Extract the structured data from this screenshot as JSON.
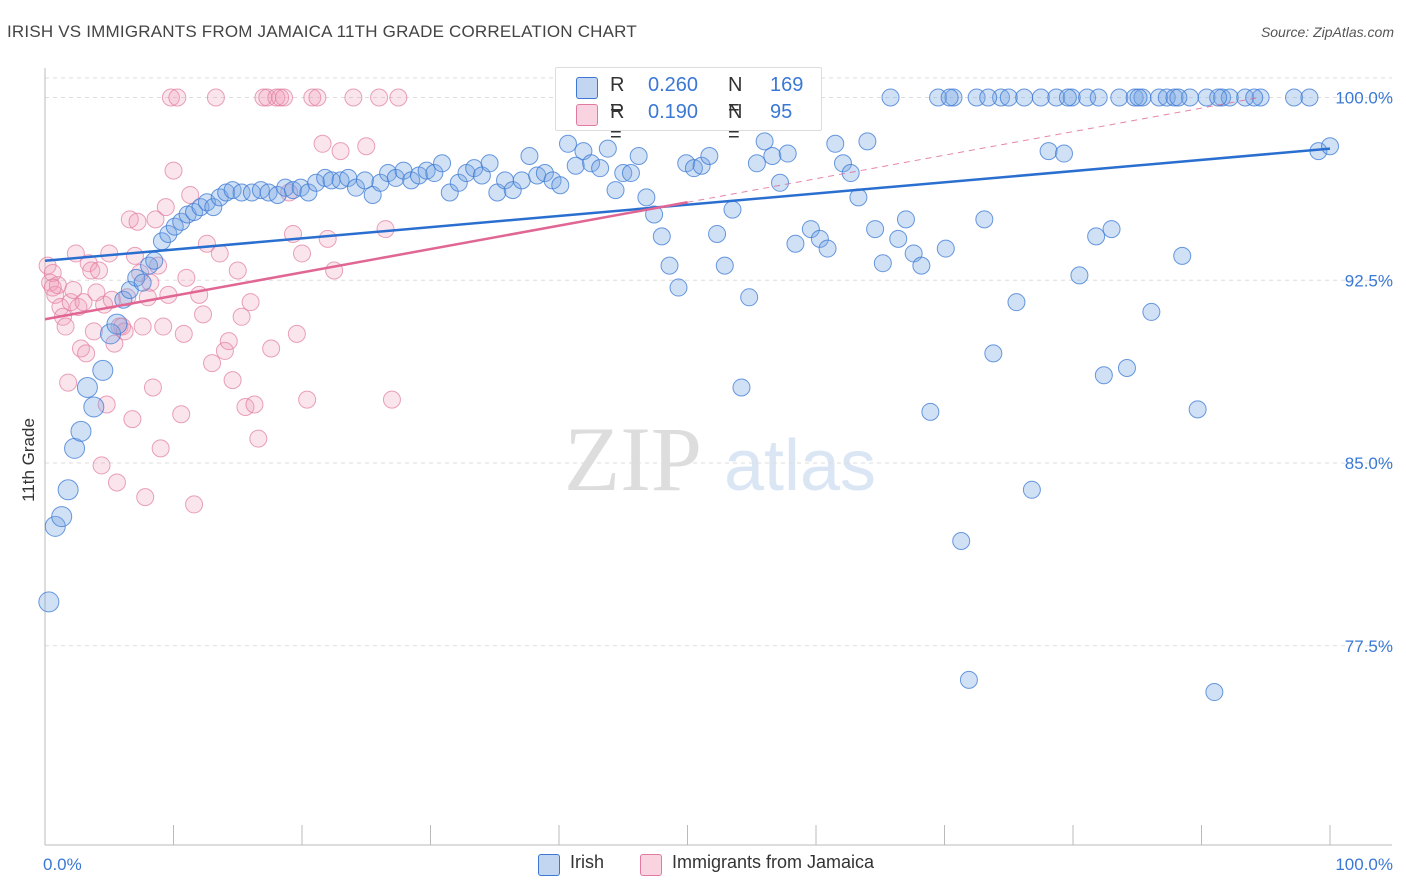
{
  "title": "IRISH VS IMMIGRANTS FROM JAMAICA 11TH GRADE CORRELATION CHART",
  "source": "Source: ZipAtlas.com",
  "watermark": {
    "zip": "ZIP",
    "atlas": "atlas"
  },
  "colors": {
    "irish_fill": "rgba(120,165,225,0.35)",
    "irish_stroke": "#3a78d4",
    "jamaica_fill": "rgba(240,150,180,0.25)",
    "jamaica_stroke": "#e07aa0",
    "irish_line": "#2a6fd0",
    "jamaica_line": "#e06694",
    "tick_text": "#3a78d4",
    "grid": "#dddddd"
  },
  "legend": {
    "rows": [
      {
        "r_label": "R =",
        "r_value": "0.260",
        "n_label": "N =",
        "n_value": "169",
        "swatch": "irish"
      },
      {
        "r_label": "R =",
        "r_value": "0.190",
        "n_label": "N =",
        "n_value": "95",
        "swatch": "jamaica"
      }
    ]
  },
  "bottom_legend": {
    "irish": "Irish",
    "jamaica": "Immigrants from Jamaica"
  },
  "chart_data": {
    "type": "scatter",
    "title": "IRISH VS IMMIGRANTS FROM JAMAICA 11TH GRADE CORRELATION CHART",
    "xlabel": "",
    "ylabel": "11th Grade",
    "xlim": [
      0,
      100
    ],
    "ylim": [
      70.5,
      100.8
    ],
    "x_tick_labels": [
      "0.0%",
      "100.0%"
    ],
    "y_ticks": [
      77.5,
      85.0,
      92.5,
      100.0
    ],
    "y_tick_labels": [
      "77.5%",
      "85.0%",
      "92.5%",
      "100.0%"
    ],
    "grid": "horizontal dashed",
    "legend_position": "top-center",
    "series": [
      {
        "name": "Irish",
        "trendline": {
          "x": [
            0,
            100
          ],
          "y": [
            93.3,
            97.9
          ]
        },
        "points": [
          [
            0.3,
            79.3
          ],
          [
            0.8,
            82.4
          ],
          [
            1.3,
            82.8
          ],
          [
            1.8,
            83.9
          ],
          [
            2.3,
            85.6
          ],
          [
            2.8,
            86.3
          ],
          [
            3.3,
            88.1
          ],
          [
            3.8,
            87.3
          ],
          [
            4.5,
            88.8
          ],
          [
            5.1,
            90.3
          ],
          [
            5.6,
            90.7
          ],
          [
            6.1,
            91.7
          ],
          [
            6.6,
            92.1
          ],
          [
            7.1,
            92.6
          ],
          [
            7.6,
            92.4
          ],
          [
            8.1,
            93.1
          ],
          [
            8.5,
            93.3
          ],
          [
            9.1,
            94.1
          ],
          [
            9.6,
            94.4
          ],
          [
            10.1,
            94.7
          ],
          [
            10.6,
            94.9
          ],
          [
            11.1,
            95.2
          ],
          [
            11.6,
            95.3
          ],
          [
            12.1,
            95.5
          ],
          [
            12.6,
            95.7
          ],
          [
            13.1,
            95.5
          ],
          [
            13.6,
            95.9
          ],
          [
            14.1,
            96.1
          ],
          [
            14.6,
            96.2
          ],
          [
            15.3,
            96.1
          ],
          [
            16.1,
            96.1
          ],
          [
            16.8,
            96.2
          ],
          [
            17.4,
            96.1
          ],
          [
            18.1,
            96.0
          ],
          [
            18.7,
            96.3
          ],
          [
            19.3,
            96.2
          ],
          [
            19.9,
            96.3
          ],
          [
            20.5,
            96.1
          ],
          [
            21.1,
            96.5
          ],
          [
            21.8,
            96.7
          ],
          [
            22.3,
            96.6
          ],
          [
            23.0,
            96.6
          ],
          [
            23.6,
            96.7
          ],
          [
            24.2,
            96.3
          ],
          [
            24.9,
            96.6
          ],
          [
            25.5,
            96.0
          ],
          [
            26.1,
            96.5
          ],
          [
            26.7,
            96.9
          ],
          [
            27.3,
            96.7
          ],
          [
            27.9,
            97.0
          ],
          [
            28.5,
            96.6
          ],
          [
            29.1,
            96.8
          ],
          [
            29.7,
            97.0
          ],
          [
            30.3,
            96.9
          ],
          [
            30.9,
            97.3
          ],
          [
            31.5,
            96.1
          ],
          [
            32.2,
            96.5
          ],
          [
            32.8,
            96.9
          ],
          [
            33.4,
            97.1
          ],
          [
            34.0,
            96.8
          ],
          [
            34.6,
            97.3
          ],
          [
            35.2,
            96.1
          ],
          [
            35.8,
            96.6
          ],
          [
            36.4,
            96.2
          ],
          [
            37.1,
            96.6
          ],
          [
            37.7,
            97.6
          ],
          [
            38.3,
            96.8
          ],
          [
            38.9,
            96.9
          ],
          [
            39.5,
            96.6
          ],
          [
            40.1,
            96.4
          ],
          [
            40.7,
            98.1
          ],
          [
            41.3,
            97.2
          ],
          [
            41.9,
            97.8
          ],
          [
            42.5,
            97.3
          ],
          [
            43.2,
            97.1
          ],
          [
            43.8,
            97.9
          ],
          [
            44.4,
            96.2
          ],
          [
            45.0,
            96.9
          ],
          [
            45.6,
            96.9
          ],
          [
            46.2,
            97.6
          ],
          [
            46.8,
            95.9
          ],
          [
            47.4,
            95.2
          ],
          [
            48.0,
            94.3
          ],
          [
            48.6,
            93.1
          ],
          [
            49.3,
            92.2
          ],
          [
            49.9,
            97.3
          ],
          [
            50.5,
            97.1
          ],
          [
            51.1,
            97.2
          ],
          [
            51.7,
            97.6
          ],
          [
            52.3,
            94.4
          ],
          [
            52.9,
            93.1
          ],
          [
            53.5,
            95.4
          ],
          [
            54.2,
            88.1
          ],
          [
            54.8,
            91.8
          ],
          [
            55.4,
            97.3
          ],
          [
            56.0,
            98.2
          ],
          [
            56.6,
            97.6
          ],
          [
            57.2,
            96.5
          ],
          [
            57.8,
            97.7
          ],
          [
            58.4,
            94.0
          ],
          [
            59.0,
            100.0
          ],
          [
            59.6,
            94.6
          ],
          [
            60.3,
            94.2
          ],
          [
            60.9,
            93.8
          ],
          [
            61.5,
            98.1
          ],
          [
            62.1,
            97.3
          ],
          [
            62.7,
            96.9
          ],
          [
            63.3,
            95.9
          ],
          [
            64.0,
            98.2
          ],
          [
            64.6,
            94.6
          ],
          [
            65.2,
            93.2
          ],
          [
            65.8,
            100.0
          ],
          [
            66.4,
            94.2
          ],
          [
            67.0,
            95.0
          ],
          [
            67.6,
            93.6
          ],
          [
            68.2,
            93.1
          ],
          [
            68.9,
            87.1
          ],
          [
            69.5,
            100.0
          ],
          [
            70.1,
            93.8
          ],
          [
            70.7,
            100.0
          ],
          [
            71.3,
            81.8
          ],
          [
            71.9,
            76.1
          ],
          [
            72.5,
            100.0
          ],
          [
            73.1,
            95.0
          ],
          [
            73.8,
            89.5
          ],
          [
            74.4,
            100.0
          ],
          [
            75.0,
            100.0
          ],
          [
            75.6,
            91.6
          ],
          [
            76.2,
            100.0
          ],
          [
            76.8,
            83.9
          ],
          [
            77.5,
            100.0
          ],
          [
            78.1,
            97.8
          ],
          [
            78.7,
            100.0
          ],
          [
            79.3,
            97.7
          ],
          [
            79.9,
            100.0
          ],
          [
            80.5,
            92.7
          ],
          [
            81.1,
            100.0
          ],
          [
            81.8,
            94.3
          ],
          [
            82.4,
            88.6
          ],
          [
            83.0,
            94.6
          ],
          [
            83.6,
            100.0
          ],
          [
            84.2,
            88.9
          ],
          [
            84.8,
            100.0
          ],
          [
            85.4,
            100.0
          ],
          [
            86.1,
            91.2
          ],
          [
            86.7,
            100.0
          ],
          [
            87.3,
            100.0
          ],
          [
            87.9,
            100.0
          ],
          [
            88.5,
            93.5
          ],
          [
            89.1,
            100.0
          ],
          [
            89.7,
            87.2
          ],
          [
            90.4,
            100.0
          ],
          [
            91.0,
            75.6
          ],
          [
            91.6,
            100.0
          ],
          [
            92.2,
            100.0
          ],
          [
            93.4,
            100.0
          ],
          [
            94.6,
            100.0
          ],
          [
            97.2,
            100.0
          ],
          [
            98.4,
            100.0
          ],
          [
            99.1,
            97.8
          ],
          [
            100.0,
            98.0
          ],
          [
            94.1,
            100.0
          ],
          [
            91.3,
            100.0
          ],
          [
            88.2,
            100.0
          ],
          [
            85.1,
            100.0
          ],
          [
            82.0,
            100.0
          ],
          [
            79.6,
            100.0
          ],
          [
            73.4,
            100.0
          ],
          [
            70.4,
            100.0
          ]
        ]
      },
      {
        "name": "Immigrants from Jamaica",
        "trendline": {
          "x": [
            0,
            50
          ],
          "y": [
            90.9,
            95.7
          ]
        },
        "trendline_dashed": {
          "x": [
            50,
            94.5
          ],
          "y": [
            95.7,
            100.0
          ]
        },
        "points": [
          [
            0.2,
            93.1
          ],
          [
            0.4,
            92.4
          ],
          [
            0.6,
            92.8
          ],
          [
            0.8,
            91.9
          ],
          [
            1.0,
            92.3
          ],
          [
            1.2,
            91.4
          ],
          [
            1.4,
            91.0
          ],
          [
            1.6,
            90.6
          ],
          [
            1.8,
            88.3
          ],
          [
            2.0,
            91.6
          ],
          [
            2.2,
            92.1
          ],
          [
            2.4,
            93.6
          ],
          [
            2.6,
            91.4
          ],
          [
            2.8,
            89.7
          ],
          [
            3.0,
            91.6
          ],
          [
            3.2,
            89.5
          ],
          [
            3.4,
            93.2
          ],
          [
            3.6,
            92.9
          ],
          [
            3.8,
            90.4
          ],
          [
            4.0,
            92.0
          ],
          [
            4.2,
            92.9
          ],
          [
            4.4,
            84.9
          ],
          [
            4.6,
            91.5
          ],
          [
            4.8,
            87.4
          ],
          [
            5.0,
            93.6
          ],
          [
            5.2,
            91.7
          ],
          [
            5.4,
            89.9
          ],
          [
            5.6,
            84.2
          ],
          [
            5.8,
            90.6
          ],
          [
            6.0,
            90.6
          ],
          [
            6.2,
            90.4
          ],
          [
            6.4,
            91.8
          ],
          [
            6.6,
            95.0
          ],
          [
            6.8,
            86.8
          ],
          [
            7.0,
            93.5
          ],
          [
            7.2,
            94.9
          ],
          [
            7.4,
            92.8
          ],
          [
            7.6,
            90.6
          ],
          [
            7.8,
            83.6
          ],
          [
            8.0,
            91.8
          ],
          [
            8.2,
            92.4
          ],
          [
            8.4,
            88.1
          ],
          [
            8.6,
            95.0
          ],
          [
            8.8,
            93.1
          ],
          [
            9.0,
            85.6
          ],
          [
            9.2,
            90.6
          ],
          [
            9.4,
            95.5
          ],
          [
            9.6,
            91.9
          ],
          [
            9.8,
            100.0
          ],
          [
            10.0,
            97.0
          ],
          [
            10.3,
            100.0
          ],
          [
            10.6,
            87.0
          ],
          [
            10.8,
            90.3
          ],
          [
            11.0,
            92.6
          ],
          [
            11.3,
            96.0
          ],
          [
            11.6,
            83.3
          ],
          [
            12.0,
            91.9
          ],
          [
            12.3,
            91.1
          ],
          [
            12.6,
            94.0
          ],
          [
            13.0,
            89.1
          ],
          [
            13.3,
            100.0
          ],
          [
            13.6,
            93.6
          ],
          [
            14.0,
            89.6
          ],
          [
            14.3,
            90.0
          ],
          [
            14.6,
            88.4
          ],
          [
            15.0,
            92.9
          ],
          [
            15.3,
            91.0
          ],
          [
            15.6,
            87.3
          ],
          [
            16.0,
            91.6
          ],
          [
            16.3,
            87.4
          ],
          [
            16.6,
            86.0
          ],
          [
            17.0,
            100.0
          ],
          [
            17.3,
            100.0
          ],
          [
            17.6,
            89.7
          ],
          [
            18.0,
            100.0
          ],
          [
            18.3,
            100.0
          ],
          [
            18.6,
            100.0
          ],
          [
            19.0,
            96.1
          ],
          [
            19.3,
            94.4
          ],
          [
            19.6,
            90.3
          ],
          [
            20.0,
            93.6
          ],
          [
            20.4,
            87.6
          ],
          [
            20.8,
            100.0
          ],
          [
            21.2,
            100.0
          ],
          [
            21.6,
            98.1
          ],
          [
            22.0,
            94.2
          ],
          [
            22.5,
            92.9
          ],
          [
            23.0,
            97.8
          ],
          [
            24.0,
            100.0
          ],
          [
            25.0,
            98.0
          ],
          [
            26.0,
            100.0
          ],
          [
            26.5,
            94.6
          ],
          [
            27.0,
            87.6
          ],
          [
            27.5,
            100.0
          ],
          [
            0.6,
            92.2
          ]
        ]
      }
    ]
  }
}
